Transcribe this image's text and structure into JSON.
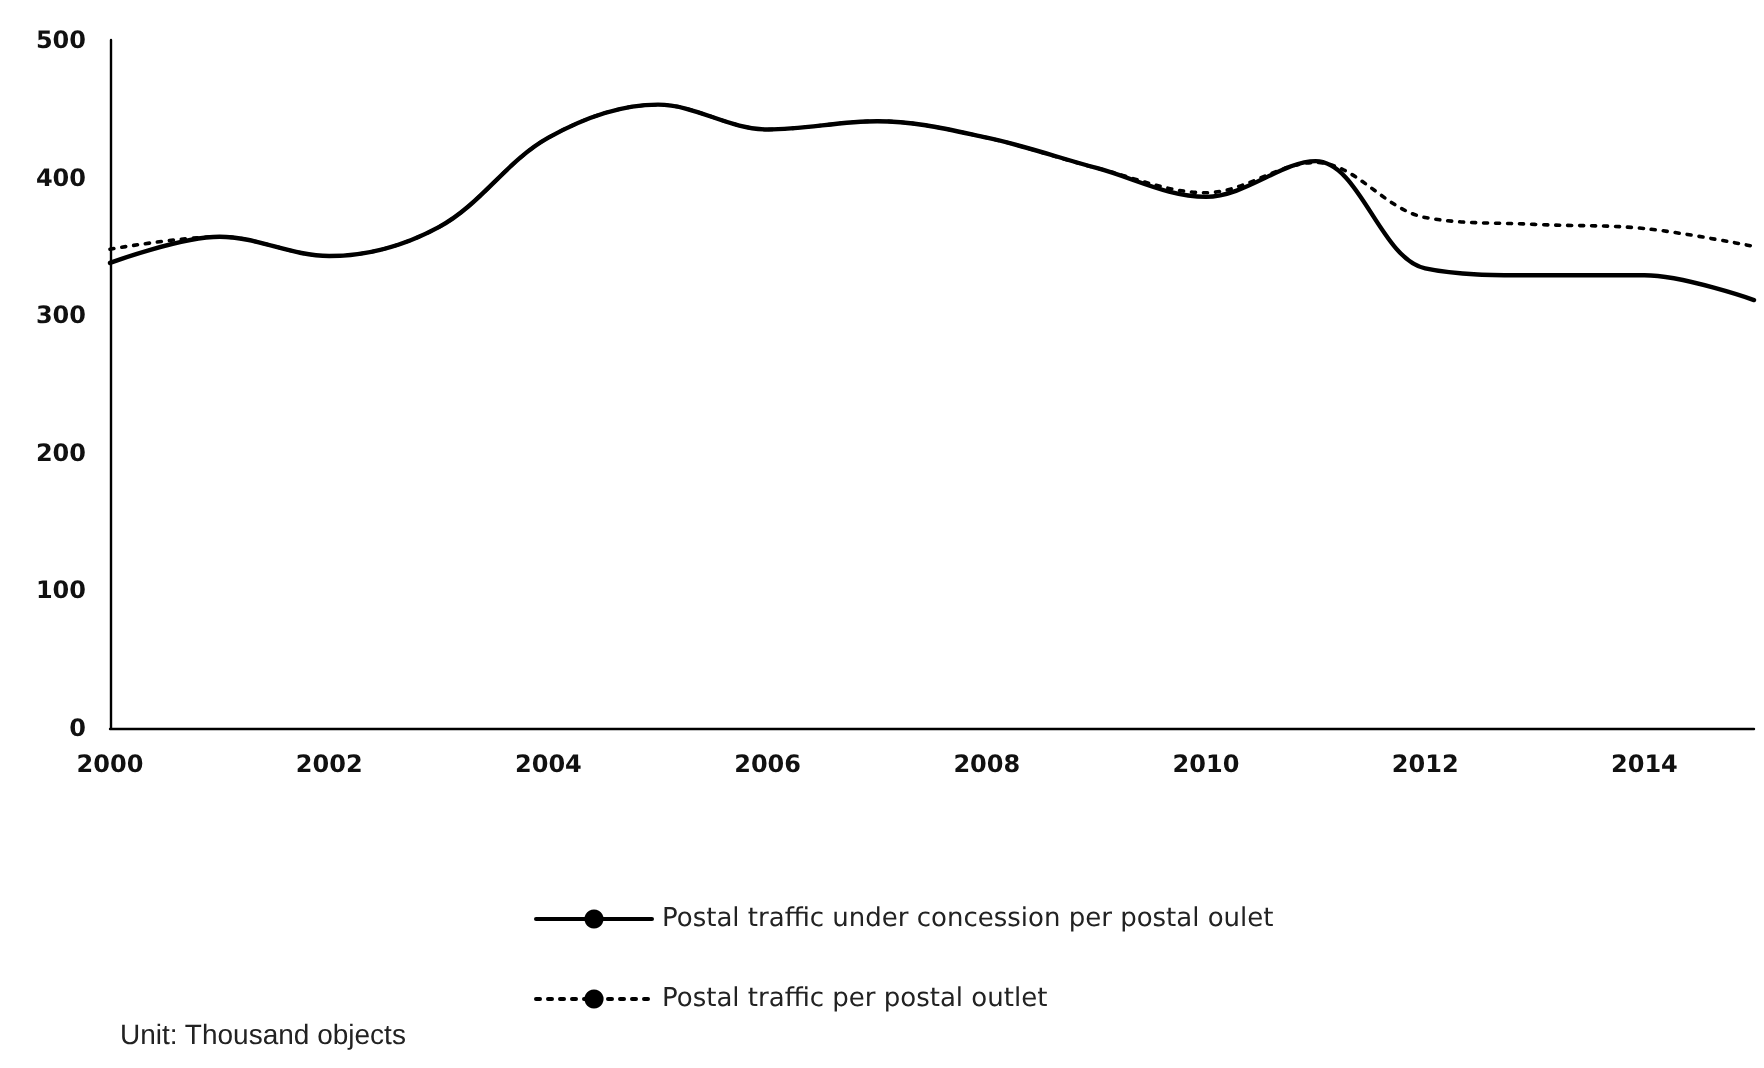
{
  "chart_data": {
    "type": "line",
    "categories": [
      "2000",
      null,
      "2002",
      null,
      "2004",
      null,
      "2006",
      null,
      "2008",
      null,
      "2010",
      null,
      "2012",
      null,
      "2014",
      null
    ],
    "series": [
      {
        "name": "Postal traffic under concession per postal oulet",
        "color": "#000000",
        "line_style": "solid",
        "values": [
          338,
          357,
          343,
          364,
          429,
          453,
          435,
          441,
          429,
          407,
          386,
          412,
          334,
          329,
          329,
          311
        ]
      },
      {
        "name": "Postal traffic per postal outlet",
        "color": "#000000",
        "line_style": "dotted",
        "values": [
          348,
          357,
          343,
          364,
          429,
          453,
          435,
          441,
          429,
          407,
          389,
          411,
          371,
          366,
          363,
          350
        ]
      }
    ],
    "ylim": [
      0,
      500
    ],
    "yticks": [
      0,
      100,
      200,
      300,
      400,
      500
    ],
    "grid": false,
    "legend": "bottom",
    "marker": "none",
    "annotations": [
      "Unit: Thousand objects"
    ]
  }
}
